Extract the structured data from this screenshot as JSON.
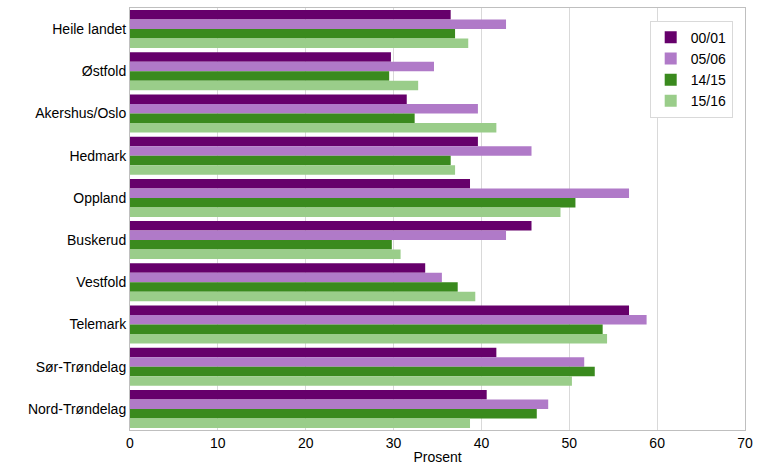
{
  "chart_data": {
    "type": "bar",
    "orientation": "horizontal",
    "x_label": "Prosent",
    "categories": [
      "Heile landet",
      "Østfold",
      "Akershus/Oslo",
      "Hedmark",
      "Oppland",
      "Buskerud",
      "Vestfold",
      "Telemark",
      "Sør-Trøndelag",
      "Nord-Trøndelag"
    ],
    "series": [
      {
        "name": "00/01",
        "color": "#66006b",
        "values": [
          36.5,
          29.7,
          31.5,
          39.6,
          38.7,
          45.7,
          33.6,
          56.8,
          41.7,
          40.6
        ]
      },
      {
        "name": "05/06",
        "color": "#b07ac8",
        "values": [
          42.8,
          34.6,
          39.6,
          45.7,
          56.8,
          42.8,
          35.5,
          58.8,
          51.7,
          47.6
        ]
      },
      {
        "name": "14/15",
        "color": "#3a8a1e",
        "values": [
          37.0,
          29.5,
          32.4,
          36.5,
          50.7,
          29.8,
          37.3,
          53.8,
          52.9,
          46.3
        ]
      },
      {
        "name": "15/16",
        "color": "#9acd8a",
        "values": [
          38.5,
          32.8,
          41.7,
          37.0,
          49.0,
          30.8,
          39.3,
          54.3,
          50.3,
          38.7
        ]
      }
    ],
    "xlim": [
      0,
      70
    ],
    "xticks": [
      0,
      10,
      20,
      30,
      40,
      50,
      60,
      70
    ],
    "grid": true,
    "legend": "top right"
  }
}
